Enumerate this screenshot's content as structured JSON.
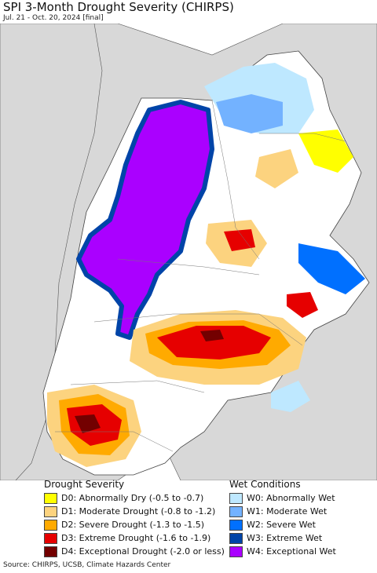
{
  "header": {
    "title": "SPI 3-Month Drought Severity (CHIRPS)",
    "subtitle": "Jul. 21 - Oct. 20, 2024 [final]"
  },
  "legend": {
    "drought_title": "Drought Severity",
    "wet_title": "Wet Conditions",
    "drought_items": [
      {
        "label": "D0: Abnormally Dry (-0.5 to -0.7)",
        "color": "#ffff00"
      },
      {
        "label": "D1: Moderate Drought (-0.8 to -1.2)",
        "color": "#fcd37f"
      },
      {
        "label": "D2: Severe Drought (-1.3 to -1.5)",
        "color": "#ffaa00"
      },
      {
        "label": "D3: Extreme Drought (-1.6 to -1.9)",
        "color": "#e60000"
      },
      {
        "label": "D4: Exceptional Drought (-2.0 or less)",
        "color": "#730000"
      }
    ],
    "wet_items": [
      {
        "label": "W0: Abnormally Wet",
        "color": "#bee8ff"
      },
      {
        "label": "W1: Moderate Wet",
        "color": "#73b2ff"
      },
      {
        "label": "W2: Severe Wet",
        "color": "#0070ff"
      },
      {
        "label": "W3: Extreme Wet",
        "color": "#0044a8"
      },
      {
        "label": "W4: Exceptional Wet",
        "color": "#aa00ff"
      }
    ]
  },
  "source": "Source: CHIRPS, UCSB, Climate Hazards Center"
}
